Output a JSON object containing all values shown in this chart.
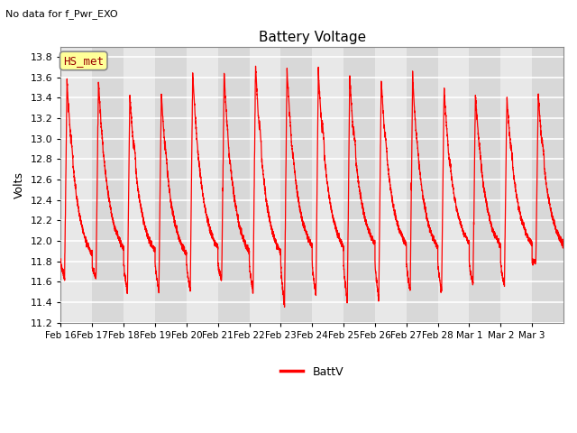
{
  "title": "Battery Voltage",
  "subtitle": "No data for f_Pwr_EXO",
  "ylabel": "Volts",
  "legend_label": "BattV",
  "legend_color": "#FF0000",
  "line_color": "#FF0000",
  "ylim": [
    11.2,
    13.9
  ],
  "yticks": [
    11.2,
    11.4,
    11.6,
    11.8,
    12.0,
    12.2,
    12.4,
    12.6,
    12.8,
    13.0,
    13.2,
    13.4,
    13.6,
    13.8
  ],
  "xtick_labels": [
    "Feb 16",
    "Feb 17",
    "Feb 18",
    "Feb 19",
    "Feb 20",
    "Feb 21",
    "Feb 22",
    "Feb 23",
    "Feb 24",
    "Feb 25",
    "Feb 26",
    "Feb 27",
    "Feb 28",
    "Mar 1",
    "Mar 2",
    "Mar 3"
  ],
  "hs_met_label": "HS_met",
  "bg_color": "#FFFFFF",
  "plot_bg_light": "#E8E8E8",
  "plot_bg_dark": "#D8D8D8",
  "grid_color": "#FFFFFF",
  "num_cycles": 16,
  "figsize": [
    6.4,
    4.8
  ],
  "dpi": 100
}
